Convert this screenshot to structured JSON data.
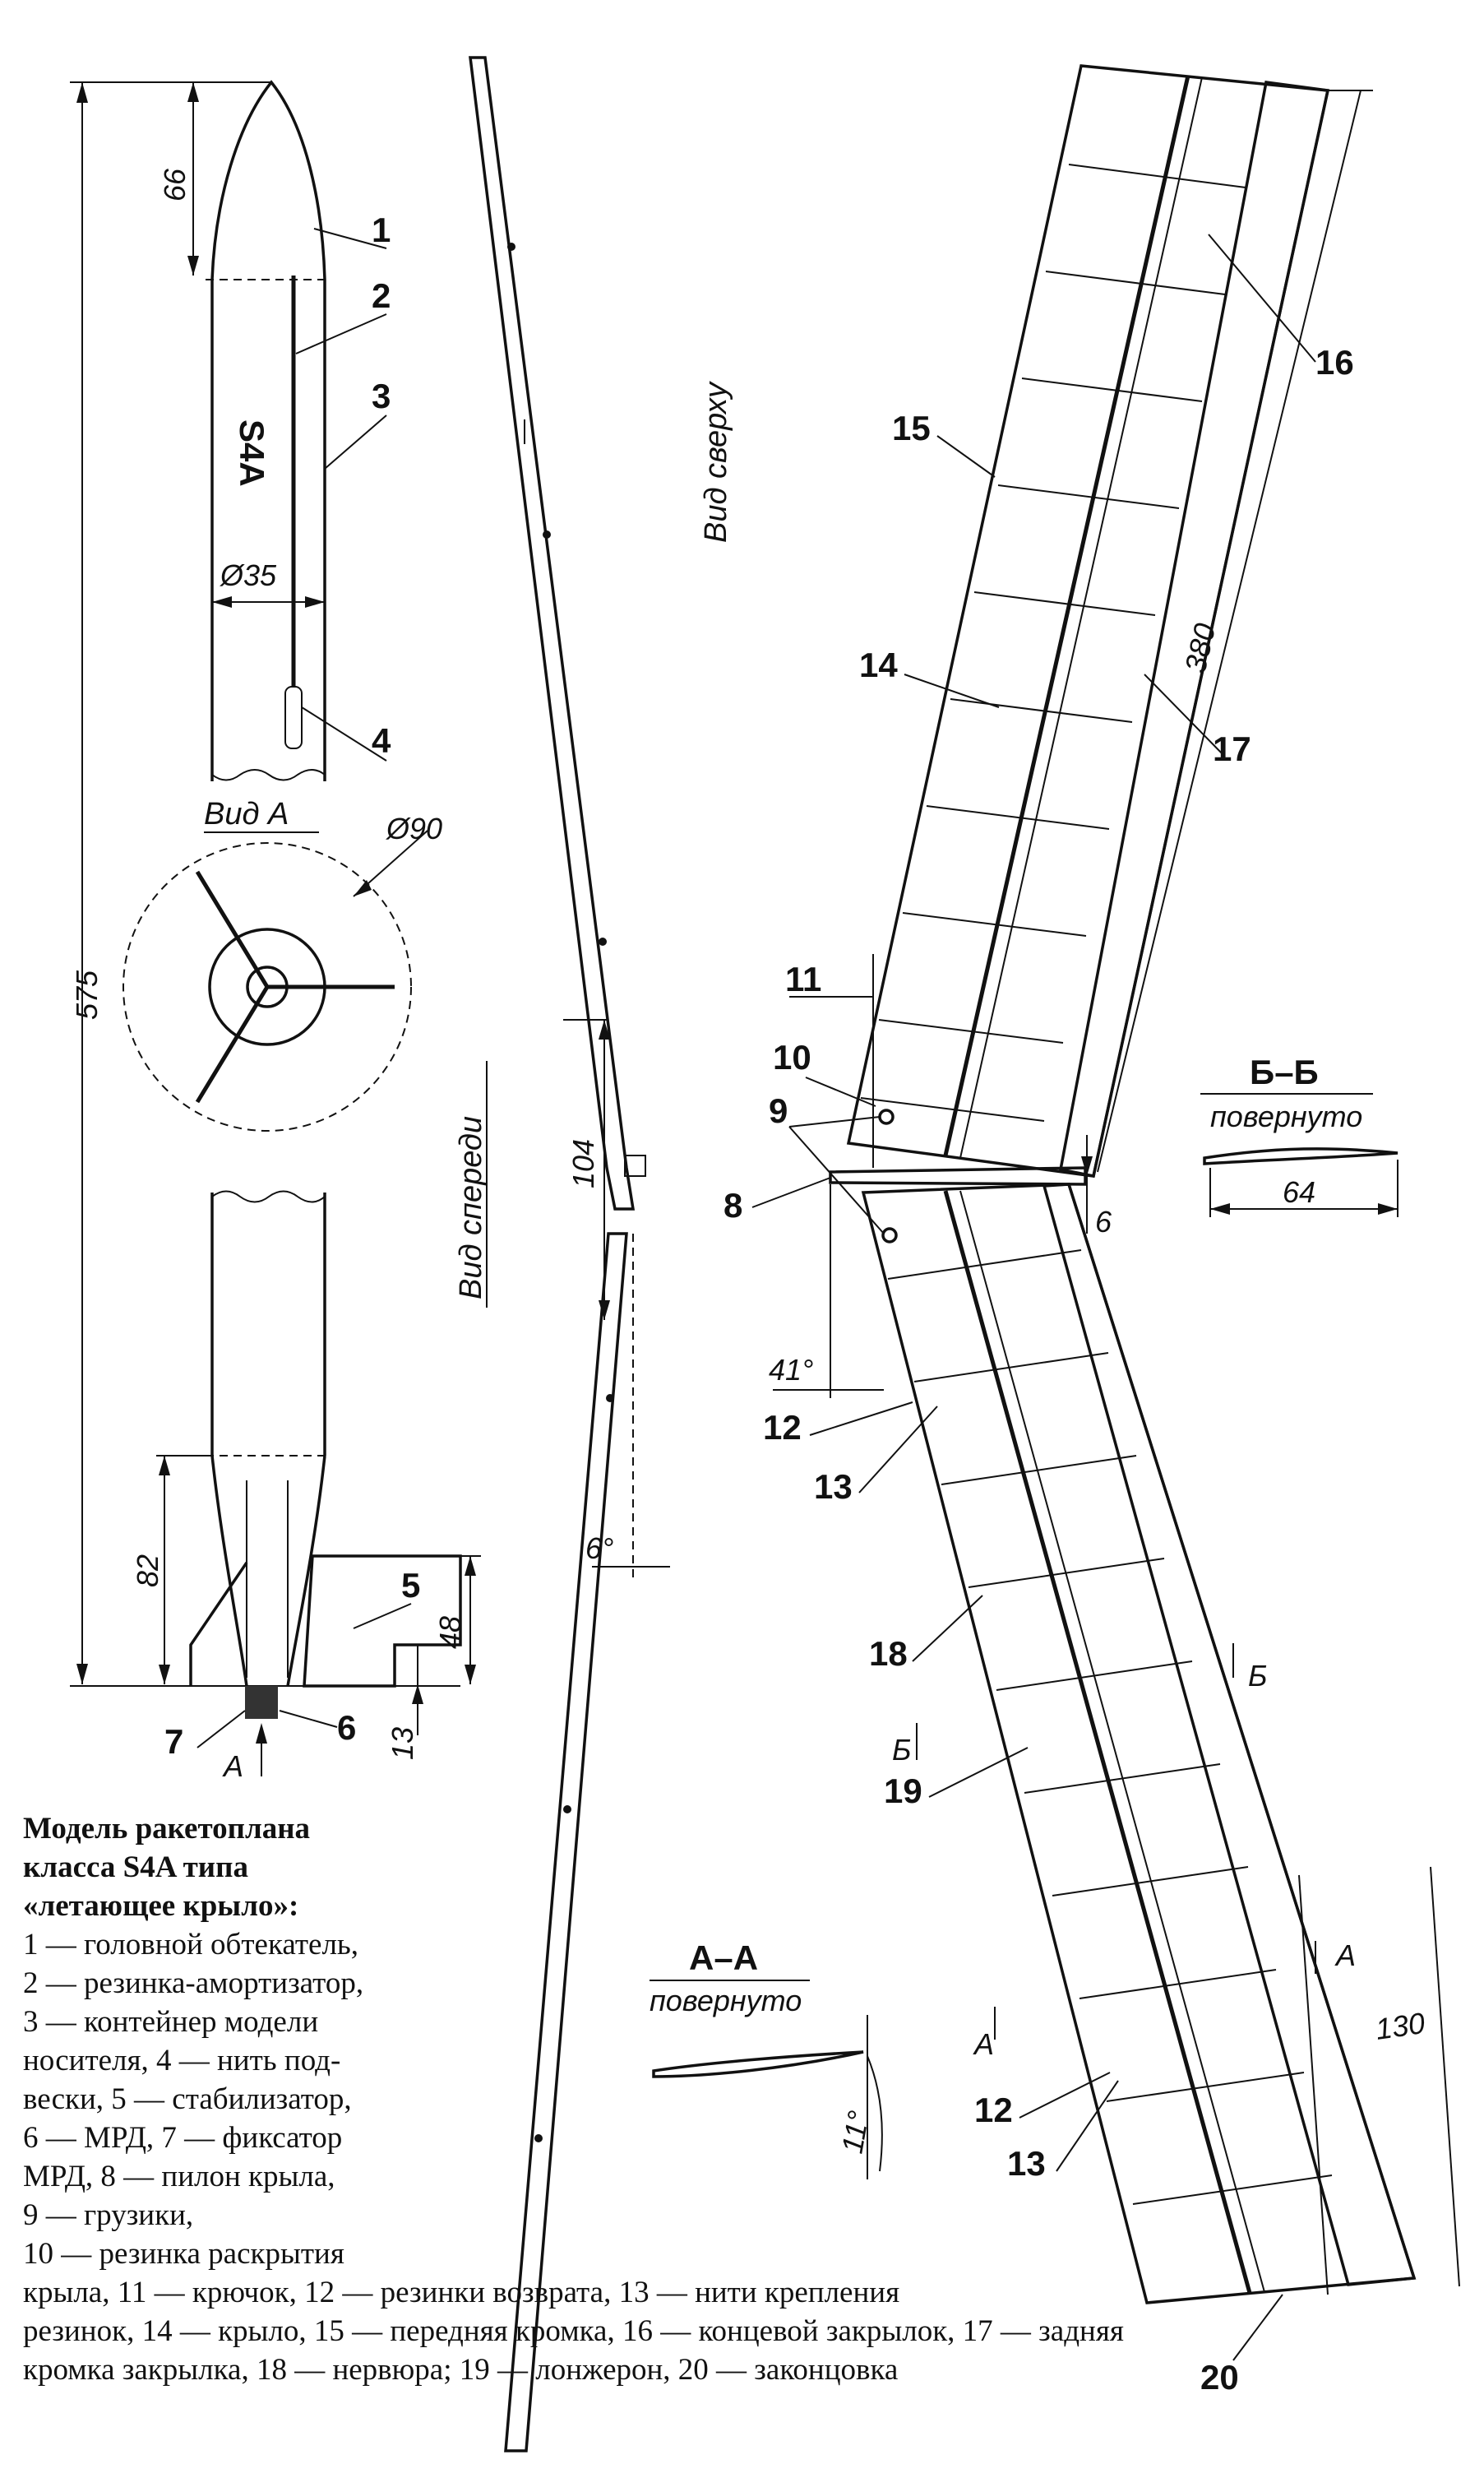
{
  "figure": {
    "view_labels": {
      "view_a": "Вид А",
      "view_top": "Вид сверху",
      "view_front": "Вид спереди",
      "section_aa": "А–А",
      "section_bb": "Б–Б",
      "rotated_aa": "повернуто",
      "rotated_bb": "повернуто"
    },
    "model_label": "S4A",
    "dimensions": {
      "nose_length": "66",
      "container_diameter": "Ø35",
      "total_length": "575",
      "stabilizer_span": "Ø90",
      "tail_cone": "82",
      "stab_height": "48",
      "stab_tip": "13",
      "pylon_height": "104",
      "dihedral": "6°",
      "sweep": "41°",
      "wing_length": "380",
      "root_chord": "130",
      "flap_chord": "64",
      "flap_offset": "6",
      "aa_angle": "11°",
      "marker_a": "А",
      "marker_b": "Б"
    },
    "callouts": {
      "n1": "1",
      "n2": "2",
      "n3": "3",
      "n4": "4",
      "n5": "5",
      "n6": "6",
      "n7": "7",
      "n8": "8",
      "n9": "9",
      "n10": "10",
      "n11": "11",
      "n12": "12",
      "n13": "13",
      "n14": "14",
      "n15": "15",
      "n16": "16",
      "n17": "17",
      "n18": "18",
      "n19": "19",
      "n20": "20"
    }
  },
  "caption": {
    "title_1": "Модель ракетоплана",
    "title_2": "класса S4A типа",
    "title_3": "«летающее крыло»:",
    "l1": "1 — головной обтекатель,",
    "l2": "2 — резинка-амортизатор,",
    "l3": "3 — контейнер модели",
    "l4": "носителя, 4 — нить под-",
    "l5": "вески, 5 — стабилизатор,",
    "l6": "6 — МРД, 7 — фиксатор",
    "l7": "МРД, 8 — пилон крыла,",
    "l8": "9 — грузики,",
    "l9": "10 — резинка раскрытия",
    "l10": "крыла, 11 — крючок, 12 — резинки возврата, 13 — нити крепления",
    "l11": "резинок, 14 — крыло, 15 — передняя кромка, 16 — концевой закрылок, 17 — задняя",
    "l12": "кромка закрылка, 18 — нервюра; 19 — лонжерон, 20 — законцовка"
  }
}
